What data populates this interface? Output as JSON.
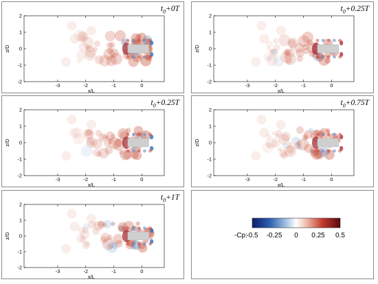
{
  "panels": [
    {
      "title_prefix": "t",
      "title_sub": "0",
      "title_suffix": "+0T"
    },
    {
      "title_prefix": "t",
      "title_sub": "0",
      "title_suffix": "+0.25T"
    },
    {
      "title_prefix": "t",
      "title_sub": "0",
      "title_suffix": "+0.25T"
    },
    {
      "title_prefix": "t",
      "title_sub": "0",
      "title_suffix": "+0.75T"
    },
    {
      "title_prefix": "t",
      "title_sub": "0",
      "title_suffix": "+1T"
    }
  ],
  "axes": {
    "xlabel": "x/L",
    "ylabel": "z/D",
    "xticks": [
      "-3",
      "-2",
      "-1",
      "0"
    ],
    "yticks": [
      "2",
      "1",
      "0",
      "-1",
      "-2"
    ]
  },
  "colorbar": {
    "label": "-Cp:",
    "ticks": [
      "-0.5",
      "-0.25",
      "0",
      "0.25",
      "0.5"
    ],
    "colors": [
      "#0b1f6b",
      "#2e5fb0",
      "#9fc0e0",
      "#ffffff",
      "#f0b8a8",
      "#c03a2c",
      "#5a0712"
    ]
  }
}
